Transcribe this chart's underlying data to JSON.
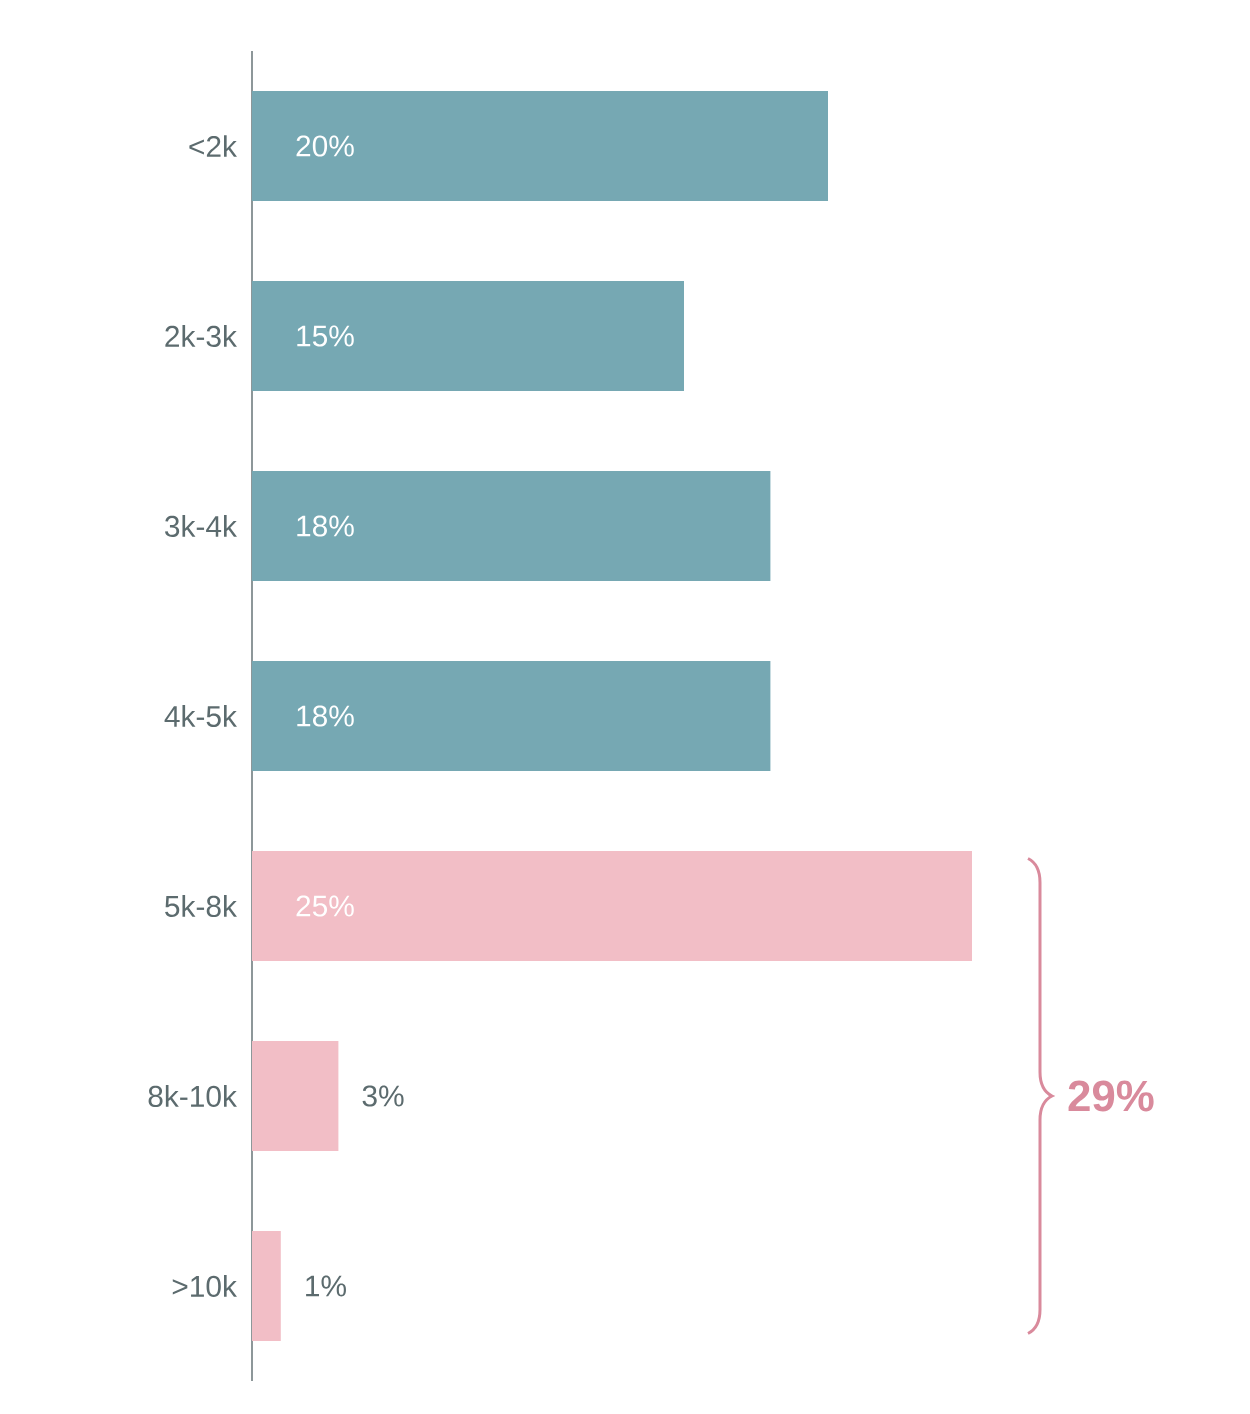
{
  "chart_data": {
    "type": "bar",
    "orientation": "horizontal",
    "categories": [
      "<2k",
      "2k-3k",
      "3k-4k",
      "4k-5k",
      "5k-8k",
      "8k-10k",
      ">10k"
    ],
    "values": [
      20,
      15,
      18,
      18,
      25,
      3,
      1
    ],
    "value_labels": [
      "20%",
      "15%",
      "18%",
      "18%",
      "25%",
      "3%",
      "1%"
    ],
    "colors": [
      "#76a8b3",
      "#76a8b3",
      "#76a8b3",
      "#76a8b3",
      "#f2bec6",
      "#f2bec6",
      "#f2bec6"
    ],
    "annotations": [
      "29%"
    ],
    "xlim": [
      0,
      25
    ]
  }
}
